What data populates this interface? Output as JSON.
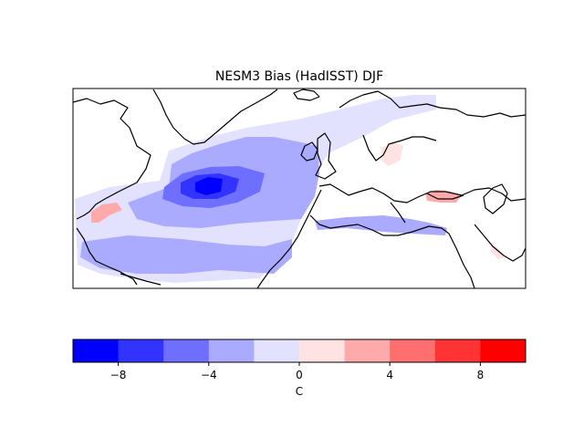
{
  "figure": {
    "title": "NESM3 Bias (HadISST) DJF",
    "colorbar_unit": "C"
  },
  "colorbar": {
    "vmin": -10,
    "vmax": 10,
    "colors": [
      "#0000ff",
      "#3333ff",
      "#6f6fff",
      "#aaaaff",
      "#e2e2ff",
      "#ffe2e2",
      "#ffaaaa",
      "#ff6f6f",
      "#ff3333",
      "#ff0000"
    ],
    "ticks": [
      -8,
      -4,
      0,
      4,
      8
    ],
    "tick_labels": [
      "−8",
      "−4",
      "0",
      "4",
      "8"
    ]
  }
}
